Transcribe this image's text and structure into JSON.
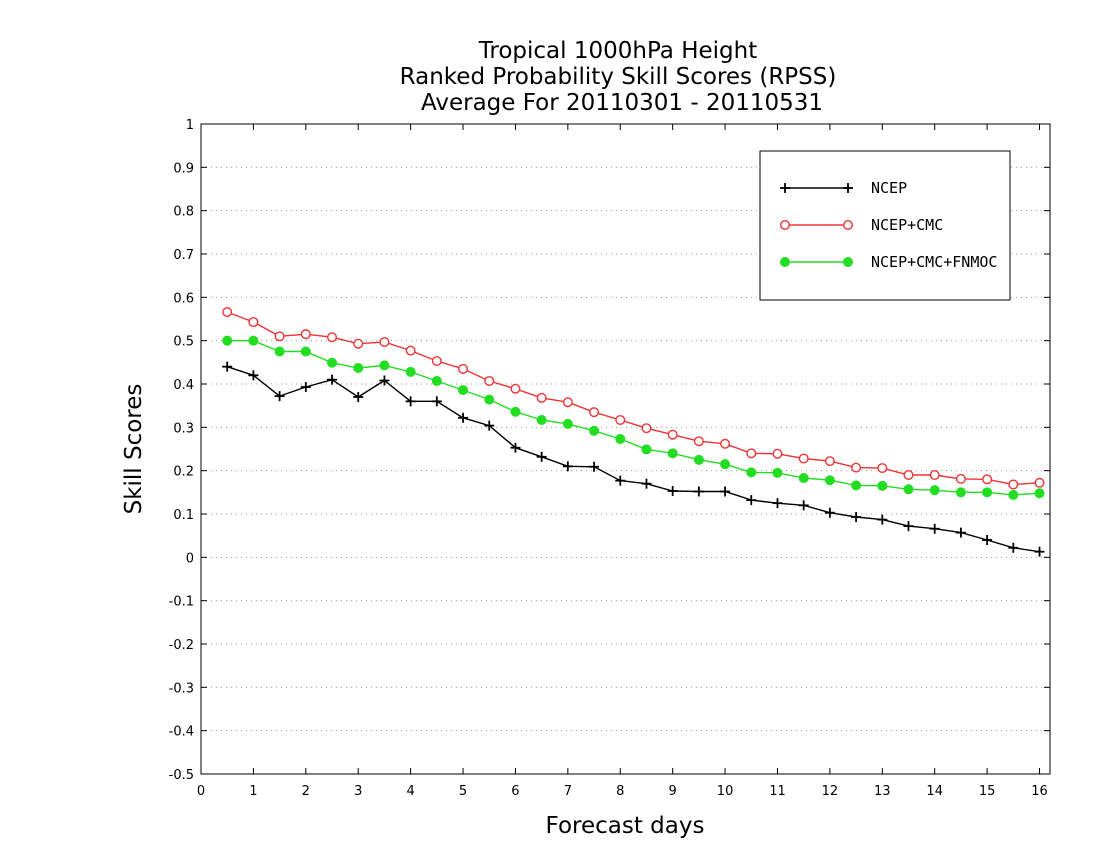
{
  "chart_data": {
    "type": "line",
    "title_lines": [
      "Tropical 1000hPa Height",
      "Ranked Probability Skill Scores (RPSS)",
      "Average For 20110301 - 20110531"
    ],
    "xlabel": "Forecast days",
    "ylabel": "Skill Scores",
    "xlim": [
      0,
      16.2
    ],
    "ylim": [
      -0.5,
      1
    ],
    "xticks": [
      0,
      1,
      2,
      3,
      4,
      5,
      6,
      7,
      8,
      9,
      10,
      11,
      12,
      13,
      14,
      15,
      16
    ],
    "yticks": [
      -0.5,
      -0.4,
      -0.3,
      -0.2,
      -0.1,
      0,
      0.1,
      0.2,
      0.3,
      0.4,
      0.5,
      0.6,
      0.7,
      0.8,
      0.9,
      1
    ],
    "ytick_labels": [
      "-0.5",
      "-0.4",
      "-0.3",
      "-0.2",
      "-0.1",
      "0",
      "0.1",
      "0.2",
      "0.3",
      "0.4",
      "0.5",
      "0.6",
      "0.7",
      "0.8",
      "0.9",
      "1"
    ],
    "grid": "horizontal dotted",
    "legend_position": "top-right",
    "x": [
      0.5,
      1,
      1.5,
      2,
      2.5,
      3,
      3.5,
      4,
      4.5,
      5,
      5.5,
      6,
      6.5,
      7,
      7.5,
      8,
      8.5,
      9,
      9.5,
      10,
      10.5,
      11,
      11.5,
      12,
      12.5,
      13,
      13.5,
      14,
      14.5,
      15,
      15.5,
      16
    ],
    "series": [
      {
        "name": "NCEP",
        "color": "#000000",
        "marker": "plus",
        "values": [
          0.44,
          0.42,
          0.372,
          0.393,
          0.41,
          0.37,
          0.408,
          0.36,
          0.36,
          0.322,
          0.304,
          0.253,
          0.232,
          0.21,
          0.209,
          0.177,
          0.17,
          0.153,
          0.152,
          0.152,
          0.132,
          0.125,
          0.12,
          0.103,
          0.093,
          0.087,
          0.072,
          0.066,
          0.057,
          0.04,
          0.022,
          0.013
        ]
      },
      {
        "name": "NCEP+CMC",
        "color": "#ee3333",
        "marker": "open-circle",
        "values": [
          0.566,
          0.543,
          0.51,
          0.515,
          0.508,
          0.493,
          0.497,
          0.477,
          0.453,
          0.435,
          0.407,
          0.389,
          0.368,
          0.358,
          0.335,
          0.317,
          0.298,
          0.283,
          0.268,
          0.262,
          0.24,
          0.239,
          0.228,
          0.222,
          0.207,
          0.206,
          0.19,
          0.19,
          0.181,
          0.18,
          0.168,
          0.172
        ]
      },
      {
        "name": "NCEP+CMC+FNMOC",
        "color": "#22dd22",
        "marker": "filled-circle",
        "values": [
          0.5,
          0.5,
          0.475,
          0.475,
          0.449,
          0.437,
          0.443,
          0.428,
          0.407,
          0.386,
          0.364,
          0.336,
          0.317,
          0.308,
          0.292,
          0.273,
          0.249,
          0.24,
          0.225,
          0.215,
          0.196,
          0.195,
          0.183,
          0.178,
          0.166,
          0.165,
          0.157,
          0.155,
          0.15,
          0.15,
          0.144,
          0.148
        ]
      }
    ]
  }
}
